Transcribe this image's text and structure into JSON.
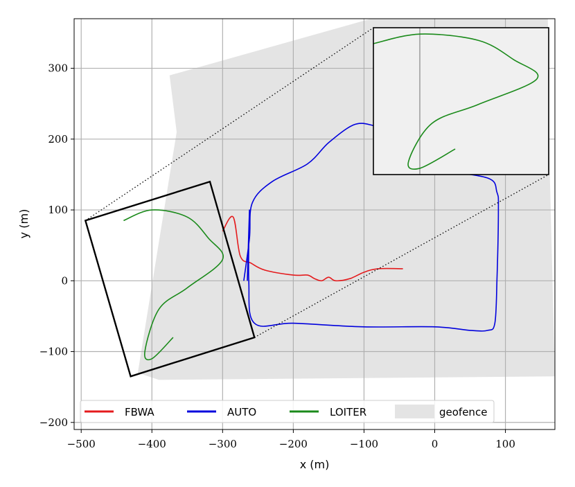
{
  "chart_data": {
    "type": "line",
    "xlabel": "x (m)",
    "ylabel": "y (m)",
    "xlim": [
      -510,
      170
    ],
    "ylim": [
      -210,
      370
    ],
    "xticks": [
      -500,
      -400,
      -300,
      -200,
      -100,
      0,
      100
    ],
    "yticks": [
      -200,
      -100,
      0,
      100,
      200,
      300
    ],
    "xtick_labels": [
      "−500",
      "−400",
      "−300",
      "−200",
      "−100",
      "0",
      "100"
    ],
    "ytick_labels": [
      "−200",
      "−100",
      "0",
      "100",
      "200",
      "300"
    ],
    "grid": true,
    "legend": {
      "placement": "lower-center",
      "entries": [
        {
          "label": "FBWA",
          "color": "#e41a1c",
          "kind": "line"
        },
        {
          "label": "AUTO",
          "color": "#0000dd",
          "kind": "line"
        },
        {
          "label": "LOITER",
          "color": "#1a8a1a",
          "kind": "line"
        },
        {
          "label": "geofence",
          "color": "#e4e4e4",
          "kind": "patch"
        }
      ]
    },
    "geofence_polygon": [
      [
        -420,
        -130
      ],
      [
        -365,
        210
      ],
      [
        -375,
        290
      ],
      [
        -90,
        370
      ],
      [
        160,
        370
      ],
      [
        163,
        140
      ],
      [
        170,
        -135
      ],
      [
        -390,
        -140
      ]
    ],
    "series": [
      {
        "name": "FBWA",
        "color": "#e41a1c",
        "x": [
          -300,
          -285,
          -275,
          -260,
          -240,
          -200,
          -180,
          -170,
          -160,
          -150,
          -140,
          -120,
          -100,
          -80,
          -45
        ],
        "y": [
          70,
          90,
          35,
          25,
          15,
          8,
          8,
          3,
          0,
          5,
          0,
          3,
          12,
          17,
          17
        ]
      },
      {
        "name": "AUTO",
        "color": "#0000dd",
        "x": [
          -270,
          -262,
          -258,
          -230,
          -180,
          -150,
          -115,
          -90,
          -70,
          -55,
          -48,
          -45,
          -40,
          -30,
          5,
          75,
          88,
          90,
          88,
          85,
          75,
          50,
          0,
          -100,
          -200,
          -255,
          -263,
          -262,
          -265
        ],
        "y": [
          0,
          60,
          110,
          140,
          165,
          195,
          220,
          220,
          210,
          190,
          175,
          165,
          160,
          155,
          155,
          145,
          125,
          100,
          0,
          -60,
          -70,
          -70,
          -65,
          -65,
          -60,
          -60,
          0,
          100,
          0
        ]
      },
      {
        "name": "LOITER",
        "color": "#1a8a1a",
        "x": [
          -440,
          -400,
          -350,
          -320,
          -300,
          -350,
          -390,
          -410,
          -400,
          -370
        ],
        "y": [
          85,
          100,
          90,
          60,
          30,
          -10,
          -40,
          -100,
          -110,
          -80
        ]
      }
    ],
    "zoom_box": {
      "corners": [
        [
          -494,
          85
        ],
        [
          -318,
          140
        ],
        [
          -255,
          -80
        ],
        [
          -430,
          -135
        ]
      ]
    }
  }
}
